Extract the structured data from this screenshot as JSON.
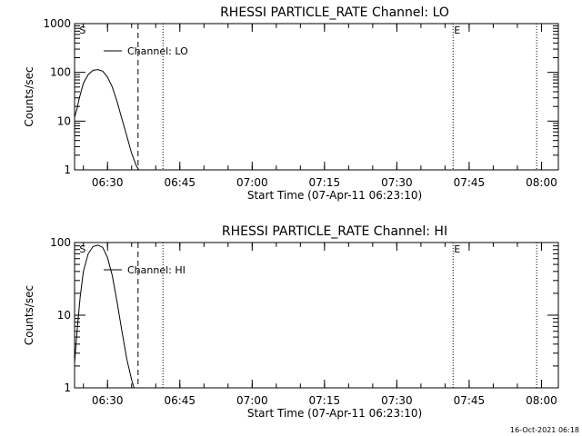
{
  "footer": {
    "timestamp": "16-Oct-2021 06:18"
  },
  "chart_data": [
    {
      "type": "line",
      "title": "RHESSI PARTICLE_RATE Channel: LO",
      "xlabel": "Start Time (07-Apr-11 06:23:10)",
      "ylabel": "Counts/sec",
      "yscale": "log",
      "ylim": [
        1,
        1000
      ],
      "yticks": [
        {
          "value": 1,
          "label": "1"
        },
        {
          "value": 10,
          "label": "10"
        },
        {
          "value": 100,
          "label": "100"
        },
        {
          "value": 1000,
          "label": "1000"
        }
      ],
      "xlim": [
        "06:23:10",
        "08:03:30"
      ],
      "xticks": [
        {
          "time": "06:30",
          "label": "06:30"
        },
        {
          "time": "06:45",
          "label": "06:45"
        },
        {
          "time": "07:00",
          "label": "07:00"
        },
        {
          "time": "07:15",
          "label": "07:15"
        },
        {
          "time": "07:30",
          "label": "07:30"
        },
        {
          "time": "07:45",
          "label": "07:45"
        },
        {
          "time": "08:00",
          "label": "08:00"
        }
      ],
      "legend": {
        "position": "top-left",
        "entry": "Channel: LO"
      },
      "series": [
        {
          "name": "Channel: LO",
          "x": [
            "06:23:10",
            "06:23:40",
            "06:24:10",
            "06:25:00",
            "06:26:00",
            "06:27:00",
            "06:28:00",
            "06:29:00",
            "06:30:00",
            "06:31:00",
            "06:32:00",
            "06:33:00",
            "06:34:00",
            "06:35:00",
            "06:36:00",
            "06:36:30"
          ],
          "y": [
            12,
            18,
            30,
            60,
            90,
            110,
            114,
            106,
            80,
            50,
            25,
            11,
            5,
            2.2,
            1.2,
            1.0
          ]
        }
      ],
      "markers": [
        {
          "time": "06:24:00",
          "label": "S",
          "style": "none"
        },
        {
          "time": "06:36:20",
          "label": "",
          "style": "dashed"
        },
        {
          "time": "06:41:30",
          "label": "",
          "style": "dotted"
        },
        {
          "time": "07:41:40",
          "label": "E",
          "style": "dotted"
        },
        {
          "time": "07:59:00",
          "label": "",
          "style": "dotted"
        }
      ]
    },
    {
      "type": "line",
      "title": "RHESSI PARTICLE_RATE Channel: HI",
      "xlabel": "Start Time (07-Apr-11 06:23:10)",
      "ylabel": "Counts/sec",
      "yscale": "log",
      "ylim": [
        1,
        100
      ],
      "yticks": [
        {
          "value": 1,
          "label": "1"
        },
        {
          "value": 10,
          "label": "10"
        },
        {
          "value": 100,
          "label": "100"
        }
      ],
      "xlim": [
        "06:23:10",
        "08:03:30"
      ],
      "xticks": [
        {
          "time": "06:30",
          "label": "06:30"
        },
        {
          "time": "06:45",
          "label": "06:45"
        },
        {
          "time": "07:00",
          "label": "07:00"
        },
        {
          "time": "07:15",
          "label": "07:15"
        },
        {
          "time": "07:30",
          "label": "07:30"
        },
        {
          "time": "07:45",
          "label": "07:45"
        },
        {
          "time": "08:00",
          "label": "08:00"
        }
      ],
      "legend": {
        "position": "top-left",
        "entry": "Channel: HI"
      },
      "series": [
        {
          "name": "Channel: HI",
          "x": [
            "06:23:10",
            "06:23:40",
            "06:24:20",
            "06:25:00",
            "06:26:00",
            "06:27:00",
            "06:28:00",
            "06:29:00",
            "06:30:00",
            "06:31:00",
            "06:32:00",
            "06:33:00",
            "06:34:00",
            "06:35:00",
            "06:35:30"
          ],
          "y": [
            2.2,
            6,
            18,
            40,
            70,
            88,
            92,
            86,
            62,
            35,
            15,
            6,
            2.5,
            1.3,
            1.0
          ]
        }
      ],
      "markers": [
        {
          "time": "06:24:00",
          "label": "S",
          "style": "none"
        },
        {
          "time": "06:36:20",
          "label": "",
          "style": "dashed"
        },
        {
          "time": "06:41:30",
          "label": "",
          "style": "dotted"
        },
        {
          "time": "07:41:40",
          "label": "E",
          "style": "dotted"
        },
        {
          "time": "07:59:00",
          "label": "",
          "style": "dotted"
        }
      ]
    }
  ]
}
